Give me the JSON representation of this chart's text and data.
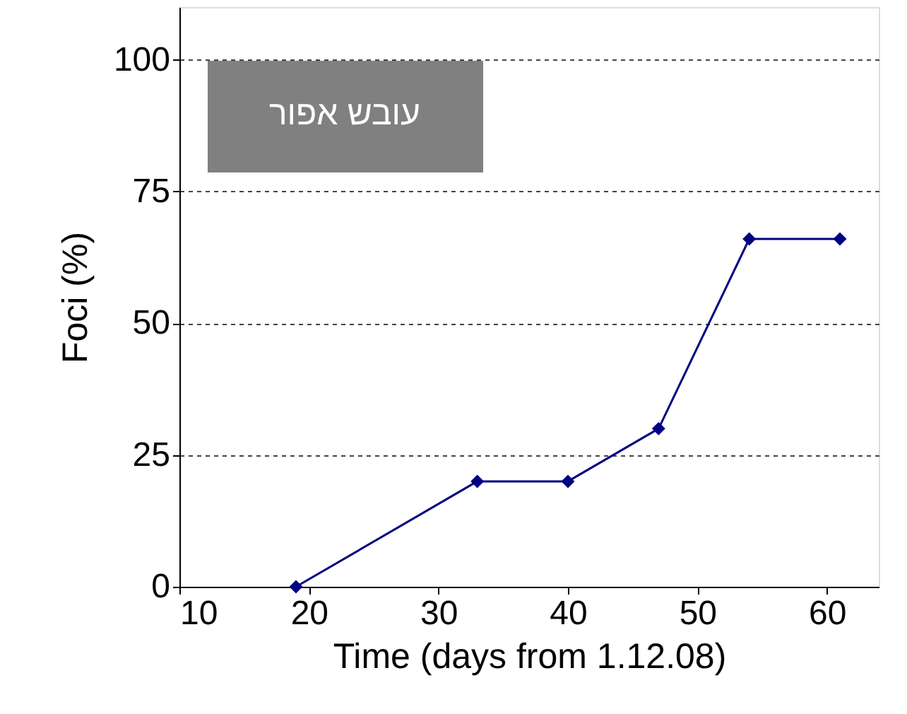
{
  "chart_data": {
    "type": "line",
    "xlabel": "Time (days from 1.12.08)",
    "ylabel": "Foci (%)",
    "x": [
      19,
      33,
      40,
      47,
      54,
      61
    ],
    "series": [
      {
        "color": "#000080",
        "values": [
          0,
          20,
          20,
          30,
          66,
          66
        ]
      }
    ],
    "xlim": [
      10,
      64
    ],
    "xticks": [
      10,
      20,
      30,
      40,
      50,
      60
    ],
    "ylim": [
      0,
      110
    ],
    "yticks": [
      0,
      25,
      50,
      75,
      100
    ],
    "grid": "y",
    "marker": "diamond",
    "line_style": "solid",
    "annotations": [
      "עובש אפור"
    ]
  }
}
